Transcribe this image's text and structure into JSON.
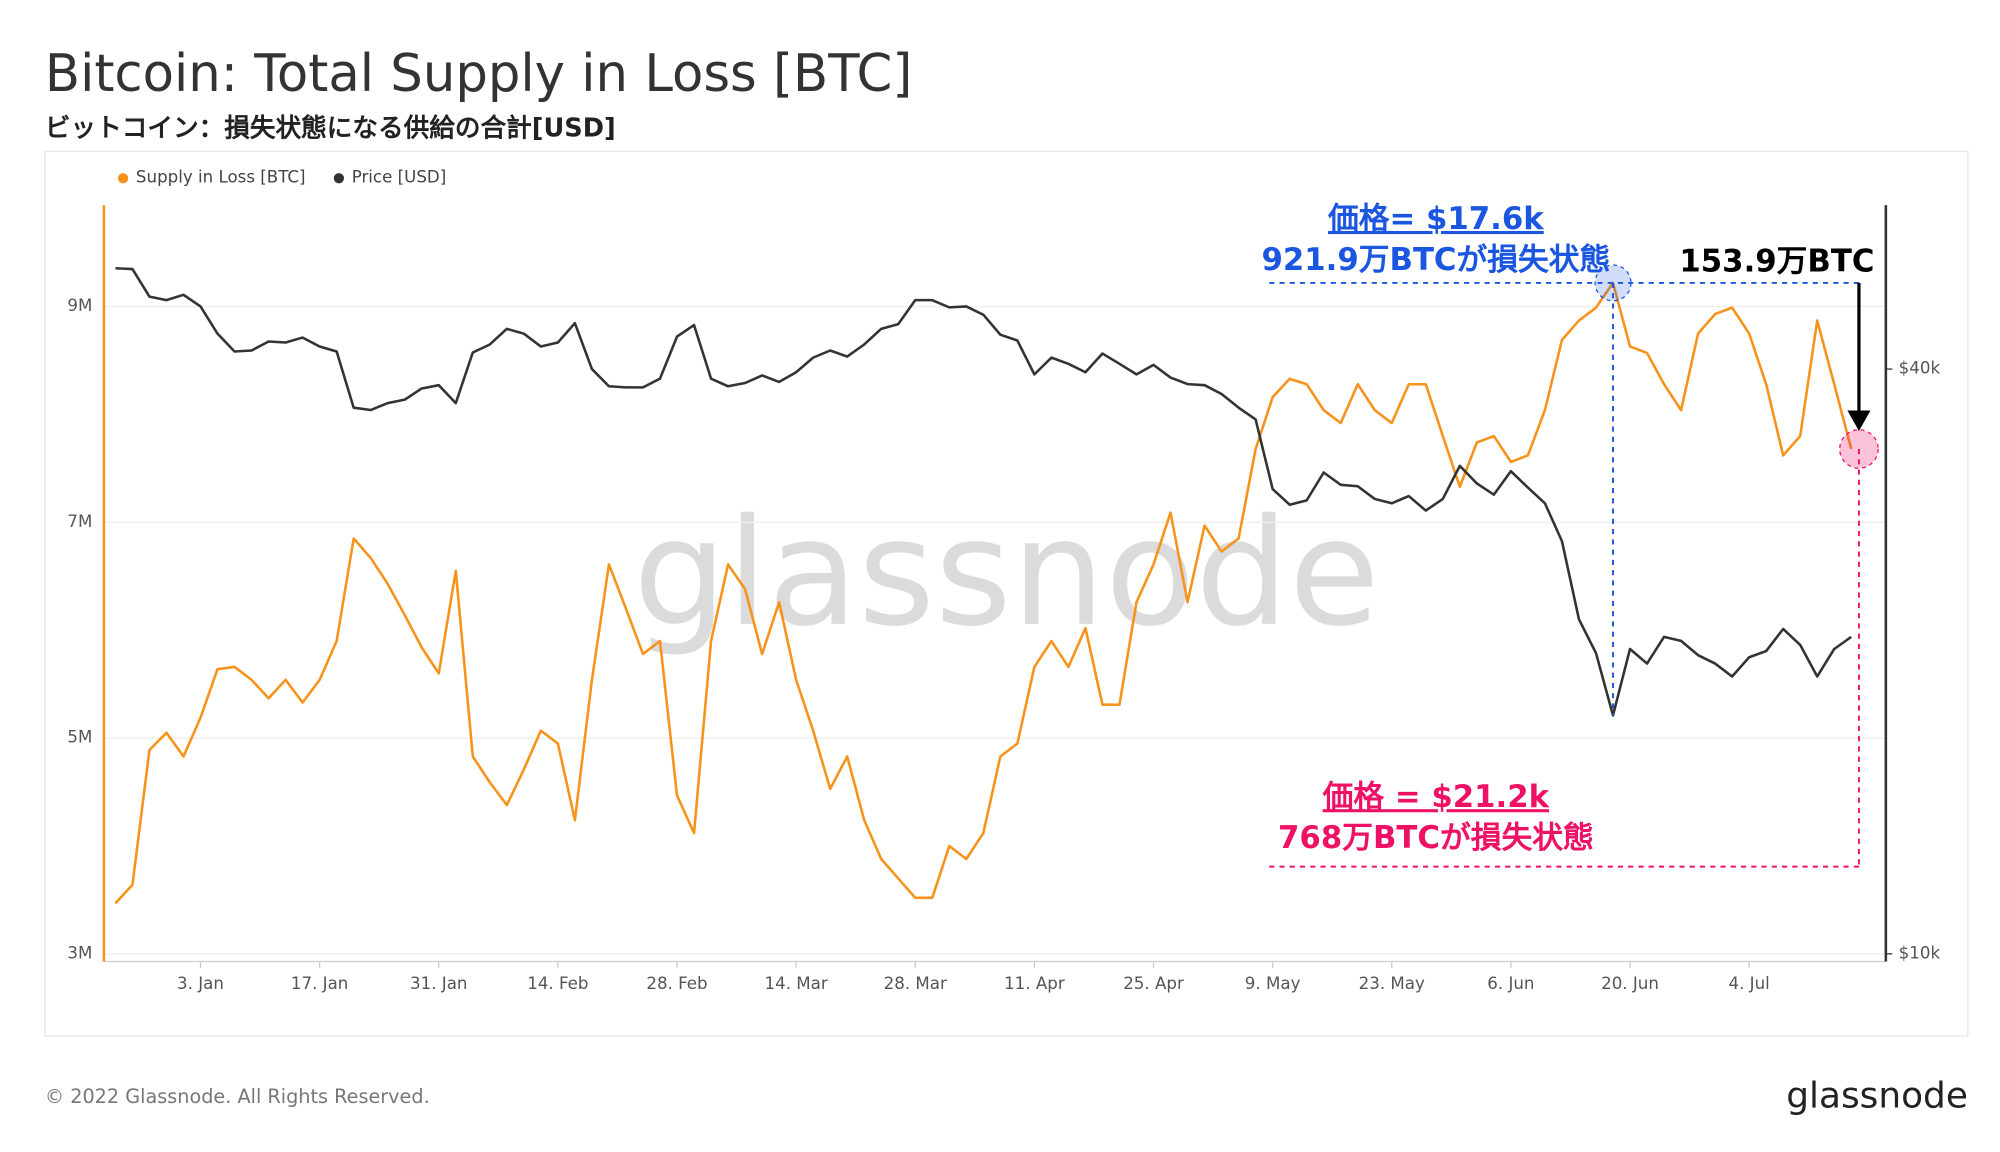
{
  "title": "Bitcoin: Total Supply in Loss [BTC]",
  "subtitle": "ビットコイン：損失状態になる供給の合計[USD]",
  "footer": "© 2022 Glassnode. All Rights Reserved.",
  "logo": "glassnode",
  "chart_data": {
    "type": "line",
    "watermark": "glassnode",
    "categories": [
      null,
      null,
      null,
      null,
      null,
      "3. Jan",
      null,
      null,
      null,
      null,
      null,
      null,
      "17. Jan",
      null,
      null,
      null,
      null,
      null,
      null,
      "31. Jan",
      null,
      null,
      null,
      null,
      null,
      null,
      "14. Feb",
      null,
      null,
      null,
      null,
      null,
      null,
      "28. Feb",
      null,
      null,
      null,
      null,
      null,
      null,
      "14. Mar",
      null,
      null,
      null,
      null,
      null,
      null,
      "28. Mar",
      null,
      null,
      null,
      null,
      null,
      null,
      "11. Apr",
      null,
      null,
      null,
      null,
      null,
      null,
      "25. Apr",
      null,
      null,
      null,
      null,
      null,
      null,
      "9. May",
      null,
      null,
      null,
      null,
      null,
      null,
      "23. May",
      null,
      null,
      null,
      null,
      null,
      null,
      "6. Jun",
      null,
      null,
      null,
      null,
      null,
      null,
      "20. Jun",
      null,
      null,
      null,
      null,
      null,
      null,
      "4. Jul",
      null,
      null,
      null,
      null,
      null,
      null
    ],
    "series": [
      {
        "name": "Supply in Loss [BTC]",
        "color": "#f7931a",
        "values": [
          3470000,
          3640000,
          4890000,
          5050000,
          4830000,
          5190000,
          5640000,
          5660000,
          5540000,
          5370000,
          5540000,
          5330000,
          5540000,
          5900000,
          6850000,
          6670000,
          6430000,
          6140000,
          5840000,
          5600000,
          6550000,
          4830000,
          4590000,
          4380000,
          4710000,
          5070000,
          4950000,
          4240000,
          5540000,
          6610000,
          6200000,
          5780000,
          5900000,
          4470000,
          4120000,
          5900000,
          6610000,
          6380000,
          5780000,
          6260000,
          5540000,
          5070000,
          4530000,
          4830000,
          4240000,
          3880000,
          3700000,
          3520000,
          3520000,
          4000000,
          3880000,
          4120000,
          4830000,
          4950000,
          5660000,
          5900000,
          5660000,
          6020000,
          5310000,
          5310000,
          6260000,
          6610000,
          7090000,
          6260000,
          6970000,
          6730000,
          6850000,
          7680000,
          8160000,
          8330000,
          8280000,
          8040000,
          7920000,
          8280000,
          8040000,
          7920000,
          8280000,
          8280000,
          7800000,
          7330000,
          7740000,
          7800000,
          7560000,
          7620000,
          8040000,
          8690000,
          8870000,
          8990000,
          9219000,
          8630000,
          8570000,
          8280000,
          8040000,
          8750000,
          8930000,
          8990000,
          8750000,
          8280000,
          7620000,
          7800000,
          8870000,
          8280000,
          7680000
        ]
      },
      {
        "name": "Price [USD]",
        "color": "#333333",
        "axis": "y2",
        "values": [
          50800,
          50700,
          47500,
          47100,
          47700,
          46400,
          43500,
          41700,
          41800,
          42700,
          42600,
          43100,
          42200,
          41700,
          36500,
          36300,
          36900,
          37200,
          38200,
          38500,
          36900,
          41600,
          42400,
          44000,
          43500,
          42200,
          42600,
          44600,
          40000,
          38400,
          38300,
          38300,
          39100,
          43200,
          44400,
          39100,
          38400,
          38700,
          39400,
          38800,
          39700,
          41100,
          41800,
          41200,
          42400,
          44000,
          44500,
          47100,
          47100,
          46300,
          46400,
          45500,
          43400,
          42800,
          39500,
          41100,
          40500,
          39700,
          41500,
          40500,
          39500,
          40400,
          39200,
          38600,
          38500,
          37700,
          36500,
          35500,
          30100,
          29000,
          29300,
          31300,
          30400,
          30300,
          29400,
          29100,
          29600,
          28600,
          29400,
          31800,
          30500,
          29700,
          31400,
          30200,
          29100,
          26600,
          22100,
          20400,
          17600,
          20600,
          19900,
          21200,
          21000,
          20300,
          19900,
          19300,
          20200,
          20500,
          21600,
          20800,
          19300,
          20600,
          21200
        ]
      }
    ],
    "ylim": [
      2930000,
      9940000
    ],
    "yticks": [
      {
        "value": 3000000,
        "label": "3M"
      },
      {
        "value": 5000000,
        "label": "5M"
      },
      {
        "value": 7000000,
        "label": "7M"
      },
      {
        "value": 9000000,
        "label": "9M"
      }
    ],
    "y2lim": [
      9820,
      59000
    ],
    "y2scale": "log",
    "y2ticks": [
      {
        "value": 10000,
        "label": "$10k"
      },
      {
        "value": 40000,
        "label": "$40k"
      }
    ],
    "grid": true,
    "legend": "top-left",
    "annotations": [
      {
        "lines": [
          "価格= $17.6k",
          "921.9万BTCが損失状態"
        ],
        "color": "#1a56e0"
      },
      {
        "lines": [
          "153.9万BTC"
        ],
        "color": "#000000"
      },
      {
        "lines": [
          "価格 = $21.2k",
          "768万BTCが損失状態"
        ],
        "color": "#ee1166"
      }
    ]
  }
}
